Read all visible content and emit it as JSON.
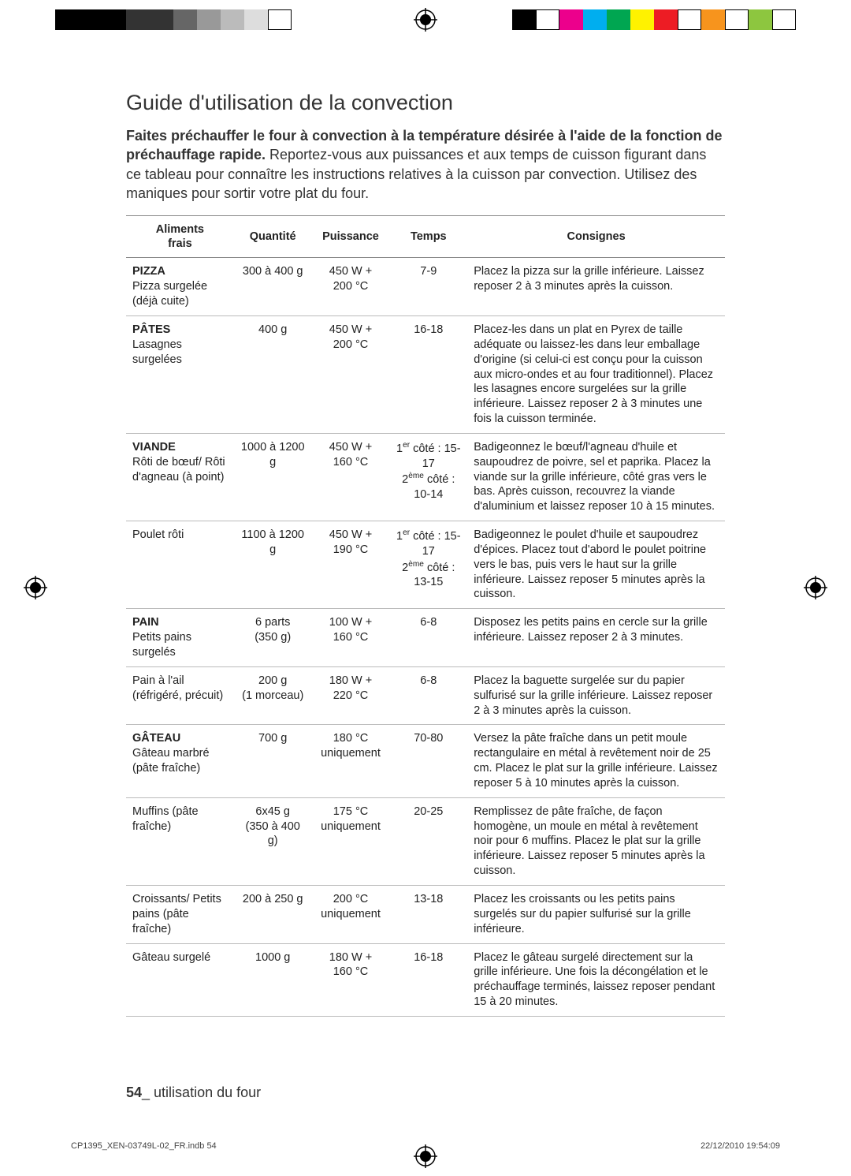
{
  "printerbar_colors_left": [
    "#000000",
    "#000000",
    "#000000",
    "#333333",
    "#333333",
    "#666666",
    "#999999",
    "#bbbbbb",
    "#dddddd",
    "#ffffff"
  ],
  "printerbar_colors_right": [
    "#000000",
    "#ffffff",
    "#ec008c",
    "#00aeef",
    "#00a651",
    "#fff200",
    "#ed1c24",
    "#ffffff",
    "#f7941d",
    "#ffffff",
    "#8dc63f",
    "#ffffff"
  ],
  "title": "Guide d'utilisation de la convection",
  "intro_bold": "Faites préchauffer le four à convection à la température désirée à l'aide de la fonction de préchauffage rapide.",
  "intro_rest": " Reportez-vous aux puissances et aux temps de cuisson figurant dans ce tableau pour connaître les instructions relatives à la cuisson par convection. Utilisez des maniques pour sortir votre plat du four.",
  "table": {
    "columns": [
      "Aliments frais",
      "Quantité",
      "Puissance",
      "Temps",
      "Consignes"
    ],
    "rows": [
      {
        "food_bold": "PIZZA",
        "food_rest": "Pizza surgelée (déjà cuite)",
        "qty": "300 à 400 g",
        "power": "450 W + 200 °C",
        "time": "7-9",
        "notes": "Placez la pizza sur la grille inférieure. Laissez reposer 2 à 3 minutes après la cuisson."
      },
      {
        "food_bold": "PÂTES",
        "food_rest": "Lasagnes surgelées",
        "qty": "400 g",
        "power": "450 W + 200 °C",
        "time": "16-18",
        "notes": "Placez-les dans un plat en Pyrex de taille adéquate ou laissez-les dans leur emballage d'origine (si celui-ci est conçu pour la cuisson aux micro-ondes et au four traditionnel). Placez les lasagnes encore surgelées sur la grille inférieure. Laissez reposer 2 à 3 minutes une fois la cuisson terminée."
      },
      {
        "food_bold": "VIANDE",
        "food_rest": "Rôti de bœuf/ Rôti d'agneau (à point)",
        "qty": "1000 à 1200 g",
        "power": "450 W + 160 °C",
        "time_html": "1<sup>er</sup> côté : 15-17<br>2<sup>ème</sup> côté : 10-14",
        "notes": "Badigeonnez le bœuf/l'agneau d'huile et saupoudrez de poivre, sel et paprika. Placez la viande sur la grille inférieure, côté gras vers le bas. Après cuisson, recouvrez la viande d'aluminium et laissez reposer 10 à 15 minutes."
      },
      {
        "food_bold": "",
        "food_rest": "Poulet rôti",
        "qty": "1100 à 1200 g",
        "power": "450 W + 190 °C",
        "time_html": "1<sup>er</sup> côté : 15-17<br>2<sup>ème</sup> côté : 13-15",
        "notes": "Badigeonnez le poulet d'huile et saupoudrez d'épices. Placez tout d'abord le poulet poitrine vers le bas, puis vers le haut sur la grille inférieure. Laissez reposer 5 minutes après la cuisson."
      },
      {
        "food_bold": "PAIN",
        "food_rest": "Petits pains surgelés",
        "qty": "6 parts (350 g)",
        "power": "100 W + 160 °C",
        "time": "6-8",
        "notes": "Disposez les petits pains en cercle sur la grille inférieure. Laissez reposer 2 à 3 minutes."
      },
      {
        "food_bold": "",
        "food_rest": "Pain à l'ail (réfrigéré, précuit)",
        "qty": "200 g (1 morceau)",
        "power": "180 W + 220 °C",
        "time": "6-8",
        "notes": "Placez la baguette surgelée sur du papier sulfurisé sur la grille inférieure. Laissez reposer 2 à 3 minutes après la cuisson."
      },
      {
        "food_bold": "GÂTEAU",
        "food_rest": "Gâteau marbré (pâte fraîche)",
        "qty": "700 g",
        "power": "180 °C uniquement",
        "time": "70-80",
        "notes": "Versez la pâte fraîche dans un petit moule rectangulaire en métal à revêtement noir de 25 cm. Placez le plat sur la grille inférieure. Laissez reposer 5 à 10 minutes après la cuisson."
      },
      {
        "food_bold": "",
        "food_rest": "Muffins (pâte fraîche)",
        "qty": "6x45 g (350 à 400 g)",
        "power": "175 °C uniquement",
        "time": "20-25",
        "notes": "Remplissez de pâte fraîche, de façon homogène, un moule en métal à revêtement noir pour 6 muffins. Placez le plat sur la grille inférieure. Laissez reposer 5 minutes après la cuisson."
      },
      {
        "food_bold": "",
        "food_rest": "Croissants/ Petits pains (pâte fraîche)",
        "qty": "200 à 250 g",
        "power": "200 °C uniquement",
        "time": "13-18",
        "notes": "Placez les croissants ou les petits pains surgelés sur du papier sulfurisé sur la grille inférieure."
      },
      {
        "food_bold": "",
        "food_rest": "Gâteau surgelé",
        "qty": "1000 g",
        "power": "180 W + 160 °C",
        "time": "16-18",
        "notes": "Placez le gâteau surgelé directement sur la grille inférieure. Une fois la décongélation et le préchauffage terminés, laissez reposer pendant 15 à 20 minutes."
      }
    ],
    "col_widths": [
      "18%",
      "13%",
      "13%",
      "13%",
      "43%"
    ]
  },
  "footer_page": "54",
  "footer_text": "_ utilisation du four",
  "imprint_file": "CP1395_XEN-03749L-02_FR.indb   54",
  "imprint_date": "22/12/2010   19:54:09"
}
